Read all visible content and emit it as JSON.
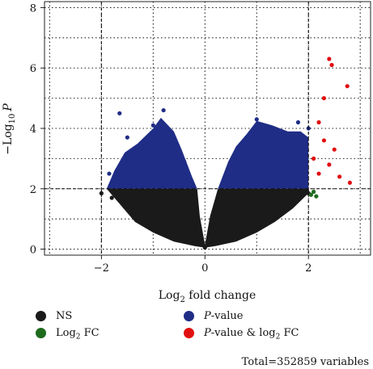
{
  "chart_data": {
    "type": "scatter",
    "title": "",
    "xlabel": {
      "base": "Log",
      "sub": "2",
      "rest": " fold change"
    },
    "ylabel": {
      "pre": "−Log",
      "sub": "10",
      "italic": "P"
    },
    "xlim": [
      -3.1,
      3.2
    ],
    "ylim": [
      -0.2,
      8.2
    ],
    "xticks": [
      -2,
      0,
      2
    ],
    "yticks": [
      0,
      2,
      4,
      6,
      8
    ],
    "grid": true,
    "cutoffs": {
      "log2fc": [
        -2,
        2
      ],
      "neglog10p": 2
    },
    "series": [
      {
        "name": "NS",
        "color": "#1a1a1a",
        "x": [
          -2.0,
          -1.8,
          -1.6,
          -1.4,
          -1.2,
          -1.0,
          -0.8,
          -0.6,
          -0.4,
          -0.2,
          0.0,
          0.2,
          0.4,
          0.6,
          0.8,
          1.0,
          1.2,
          1.4,
          1.6,
          1.8,
          2.0
        ],
        "y": [
          1.85,
          1.7,
          1.55,
          1.4,
          1.25,
          1.1,
          0.9,
          0.7,
          0.5,
          0.3,
          0.05,
          0.3,
          0.5,
          0.7,
          0.9,
          1.1,
          1.25,
          1.4,
          1.55,
          1.7,
          1.85
        ]
      },
      {
        "name": "Log",
        "name_sub": "2",
        "name_rest": " FC",
        "color": "#1e6b1e",
        "x": [
          2.05,
          2.1,
          2.15
        ],
        "y": [
          1.8,
          1.9,
          1.75
        ]
      },
      {
        "name": "P",
        "name_rest": "-value",
        "color": "#1f2d86",
        "x": [
          -1.85,
          -1.65,
          -1.5,
          -1.2,
          -1.0,
          -0.8,
          -0.6,
          -0.4,
          0.6,
          0.8,
          1.0,
          1.2,
          1.4,
          1.6,
          1.8,
          2.0
        ],
        "y": [
          2.5,
          4.5,
          3.7,
          3.5,
          4.1,
          4.6,
          3.3,
          2.9,
          2.8,
          3.7,
          4.3,
          4.0,
          3.6,
          3.8,
          4.2,
          4.0
        ]
      },
      {
        "name": "P",
        "name_rest": "-value & log",
        "name_sub": "2",
        "name_rest2": " FC",
        "color": "#e01010",
        "x": [
          2.1,
          2.2,
          2.3,
          2.4,
          2.45,
          2.6,
          2.75,
          2.8,
          2.3,
          2.5,
          2.2,
          2.4
        ],
        "y": [
          3.0,
          2.5,
          3.6,
          6.3,
          6.1,
          2.4,
          5.4,
          2.2,
          5.0,
          3.3,
          4.2,
          2.8
        ]
      }
    ]
  },
  "legend": {
    "ns": "NS",
    "log2fc_base": "Log",
    "log2fc_sub": "2",
    "log2fc_rest": " FC",
    "pvalue_italic": "P",
    "pvalue_rest": "-value",
    "both_italic": "P",
    "both_mid": "-value & log",
    "both_sub": "2",
    "both_rest": " FC"
  },
  "footer": {
    "total": "Total=352859 variables"
  },
  "colors": {
    "ns": "#1a1a1a",
    "log2fc": "#1e6b1e",
    "pvalue": "#1f2d86",
    "both": "#e01010"
  }
}
